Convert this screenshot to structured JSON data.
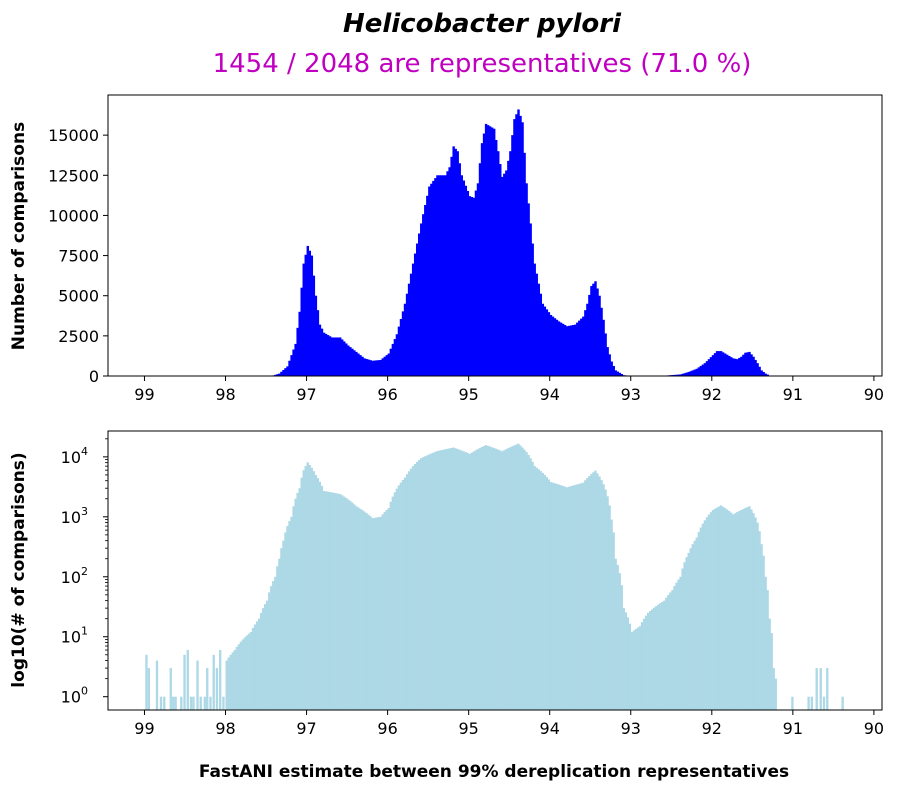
{
  "title": "Helicobacter pylori",
  "subtitle": "1454 / 2048 are representatives (71.0 %)",
  "colors": {
    "subtitle": "#c000c0",
    "top_bars": "#0000ff",
    "bottom_bars": "#add8e6"
  },
  "chart_data": [
    {
      "type": "bar",
      "panel": "top",
      "title": "Helicobacter pylori",
      "subtitle": "1454 / 2048 are representatives (71.0 %)",
      "xlabel": "",
      "ylabel": "Number of comparisons",
      "xlim": [
        99.45,
        89.9
      ],
      "ylim": [
        0,
        17500
      ],
      "x_reversed": true,
      "bin_width": 0.025,
      "xticks": [
        "99",
        "98",
        "97",
        "96",
        "95",
        "94",
        "93",
        "92",
        "91",
        "90"
      ],
      "yticks": [
        "0",
        "2500",
        "5000",
        "7500",
        "10000",
        "12500",
        "15000"
      ],
      "profile": [
        [
          97.45,
          0
        ],
        [
          97.35,
          150
        ],
        [
          97.25,
          600
        ],
        [
          97.15,
          2000
        ],
        [
          97.1,
          4000
        ],
        [
          97.05,
          7000
        ],
        [
          97.0,
          8100
        ],
        [
          96.95,
          7500
        ],
        [
          96.9,
          5000
        ],
        [
          96.85,
          3200
        ],
        [
          96.8,
          2700
        ],
        [
          96.7,
          2400
        ],
        [
          96.6,
          2400
        ],
        [
          96.5,
          1900
        ],
        [
          96.4,
          1500
        ],
        [
          96.3,
          1100
        ],
        [
          96.2,
          950
        ],
        [
          96.1,
          1000
        ],
        [
          96.0,
          1400
        ],
        [
          95.9,
          2600
        ],
        [
          95.8,
          4500
        ],
        [
          95.7,
          7000
        ],
        [
          95.6,
          9500
        ],
        [
          95.5,
          11800
        ],
        [
          95.4,
          12500
        ],
        [
          95.3,
          12500
        ],
        [
          95.25,
          13000
        ],
        [
          95.2,
          14300
        ],
        [
          95.15,
          14000
        ],
        [
          95.1,
          12500
        ],
        [
          95.0,
          11200
        ],
        [
          94.95,
          11100
        ],
        [
          94.9,
          12000
        ],
        [
          94.85,
          14500
        ],
        [
          94.8,
          15700
        ],
        [
          94.7,
          15400
        ],
        [
          94.65,
          14000
        ],
        [
          94.6,
          12400
        ],
        [
          94.55,
          12800
        ],
        [
          94.5,
          14000
        ],
        [
          94.45,
          16000
        ],
        [
          94.4,
          16600
        ],
        [
          94.35,
          15800
        ],
        [
          94.3,
          12000
        ],
        [
          94.2,
          7000
        ],
        [
          94.1,
          4500
        ],
        [
          94.0,
          3800
        ],
        [
          93.9,
          3400
        ],
        [
          93.8,
          3100
        ],
        [
          93.7,
          3200
        ],
        [
          93.6,
          3700
        ],
        [
          93.55,
          4500
        ],
        [
          93.5,
          5600
        ],
        [
          93.45,
          5900
        ],
        [
          93.4,
          5000
        ],
        [
          93.35,
          3500
        ],
        [
          93.3,
          1800
        ],
        [
          93.25,
          900
        ],
        [
          93.2,
          350
        ],
        [
          93.1,
          50
        ],
        [
          93.0,
          0
        ],
        [
          92.8,
          0
        ],
        [
          92.6,
          20
        ],
        [
          92.5,
          60
        ],
        [
          92.4,
          100
        ],
        [
          92.3,
          250
        ],
        [
          92.2,
          450
        ],
        [
          92.1,
          800
        ],
        [
          92.0,
          1300
        ],
        [
          91.95,
          1550
        ],
        [
          91.9,
          1550
        ],
        [
          91.8,
          1250
        ],
        [
          91.75,
          1100
        ],
        [
          91.7,
          1050
        ],
        [
          91.65,
          1200
        ],
        [
          91.6,
          1450
        ],
        [
          91.55,
          1500
        ],
        [
          91.5,
          1200
        ],
        [
          91.45,
          800
        ],
        [
          91.4,
          350
        ],
        [
          91.35,
          150
        ],
        [
          91.3,
          30
        ],
        [
          91.25,
          0
        ]
      ]
    },
    {
      "type": "bar",
      "panel": "bottom",
      "xlabel": "FastANI estimate between 99% dereplication representatives",
      "ylabel": "log10(# of comparisons)",
      "xlim": [
        99.45,
        89.9
      ],
      "ylim": [
        0.6,
        27000
      ],
      "yscale": "log",
      "x_reversed": true,
      "bin_width": 0.025,
      "xticks": [
        "99",
        "98",
        "97",
        "96",
        "95",
        "94",
        "93",
        "92",
        "91",
        "90"
      ],
      "yticks": [
        {
          "base": "10",
          "exp": "0"
        },
        {
          "base": "10",
          "exp": "1"
        },
        {
          "base": "10",
          "exp": "2"
        },
        {
          "base": "10",
          "exp": "3"
        },
        {
          "base": "10",
          "exp": "4"
        }
      ],
      "profile": [
        [
          98.0,
          4
        ],
        [
          97.9,
          6
        ],
        [
          97.8,
          9
        ],
        [
          97.7,
          12
        ],
        [
          97.6,
          20
        ],
        [
          97.5,
          40
        ],
        [
          97.4,
          100
        ],
        [
          97.35,
          200
        ],
        [
          97.3,
          400
        ],
        [
          97.2,
          1000
        ],
        [
          97.1,
          3000
        ],
        [
          97.05,
          6000
        ],
        [
          97.0,
          8100
        ],
        [
          96.9,
          5000
        ],
        [
          96.8,
          2700
        ],
        [
          96.6,
          2400
        ],
        [
          96.4,
          1500
        ],
        [
          96.2,
          950
        ],
        [
          96.1,
          1000
        ],
        [
          96.0,
          1400
        ],
        [
          95.8,
          4500
        ],
        [
          95.6,
          9500
        ],
        [
          95.4,
          12500
        ],
        [
          95.2,
          14300
        ],
        [
          95.0,
          11200
        ],
        [
          94.8,
          15700
        ],
        [
          94.6,
          12400
        ],
        [
          94.4,
          16600
        ],
        [
          94.3,
          12000
        ],
        [
          94.2,
          7000
        ],
        [
          94.0,
          3800
        ],
        [
          93.8,
          3100
        ],
        [
          93.6,
          3700
        ],
        [
          93.45,
          5900
        ],
        [
          93.35,
          3500
        ],
        [
          93.25,
          900
        ],
        [
          93.2,
          200
        ],
        [
          93.1,
          30
        ],
        [
          93.0,
          12
        ],
        [
          92.9,
          15
        ],
        [
          92.8,
          25
        ],
        [
          92.6,
          40
        ],
        [
          92.5,
          60
        ],
        [
          92.4,
          100
        ],
        [
          92.3,
          250
        ],
        [
          92.2,
          450
        ],
        [
          92.0,
          1300
        ],
        [
          91.9,
          1550
        ],
        [
          91.75,
          1100
        ],
        [
          91.55,
          1500
        ],
        [
          91.45,
          800
        ],
        [
          91.4,
          350
        ],
        [
          91.35,
          100
        ],
        [
          91.3,
          20
        ],
        [
          91.25,
          3
        ],
        [
          91.2,
          1
        ]
      ],
      "outliers": [
        [
          98.99,
          5
        ],
        [
          98.96,
          3
        ],
        [
          98.86,
          4
        ],
        [
          98.81,
          1
        ],
        [
          98.77,
          1
        ],
        [
          98.69,
          3
        ],
        [
          98.66,
          1
        ],
        [
          98.63,
          1
        ],
        [
          98.56,
          1
        ],
        [
          98.52,
          5
        ],
        [
          98.48,
          6
        ],
        [
          98.44,
          1
        ],
        [
          98.41,
          1
        ],
        [
          98.36,
          4
        ],
        [
          98.32,
          1
        ],
        [
          98.27,
          1
        ],
        [
          98.24,
          3
        ],
        [
          98.2,
          1
        ],
        [
          98.16,
          5
        ],
        [
          98.12,
          3
        ],
        [
          98.08,
          6
        ],
        [
          98.04,
          1
        ],
        [
          91.02,
          1
        ],
        [
          90.82,
          1
        ],
        [
          90.78,
          1
        ],
        [
          90.72,
          3
        ],
        [
          90.67,
          3
        ],
        [
          90.63,
          1
        ],
        [
          90.59,
          3
        ],
        [
          90.4,
          1
        ]
      ]
    }
  ]
}
